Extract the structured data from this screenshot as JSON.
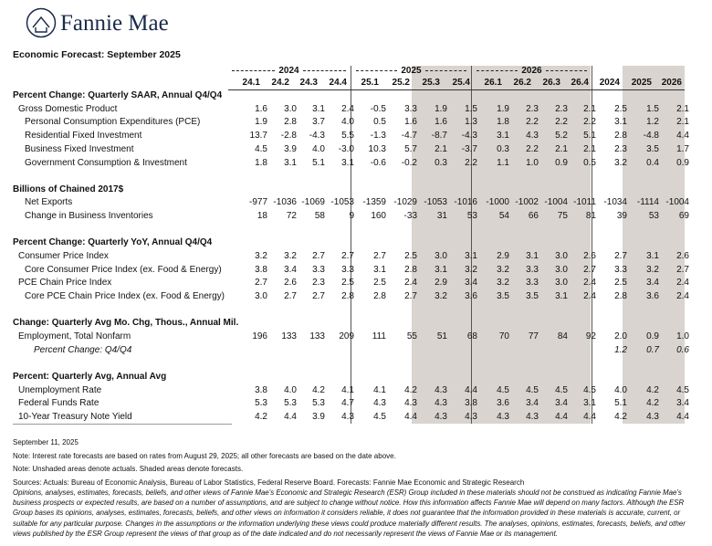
{
  "header": {
    "logo": "Fannie Mae",
    "title": "Economic Forecast: September 2025"
  },
  "columns": {
    "years": [
      "2024",
      "2025",
      "2026"
    ],
    "quarters": [
      "24.1",
      "24.2",
      "24.3",
      "24.4",
      "25.1",
      "25.2",
      "25.3",
      "25.4",
      "26.1",
      "26.2",
      "26.3",
      "26.4"
    ],
    "annual": [
      "2024",
      "2025",
      "2026"
    ]
  },
  "sections": [
    {
      "title": "Percent Change: Quarterly SAAR, Annual Q4/Q4",
      "rows": [
        {
          "label": "Gross Domestic Product",
          "quarters": [
            "1.6",
            "3.0",
            "3.1",
            "2.4",
            "-0.5",
            "3.3",
            "1.9",
            "1.5",
            "1.9",
            "2.3",
            "2.3",
            "2.1"
          ],
          "annual": [
            "2.5",
            "1.5",
            "2.1"
          ]
        },
        {
          "label": "Personal Consumption Expenditures (PCE)",
          "quarters": [
            "1.9",
            "2.8",
            "3.7",
            "4.0",
            "0.5",
            "1.6",
            "1.6",
            "1.3",
            "1.8",
            "2.2",
            "2.2",
            "2.2"
          ],
          "annual": [
            "3.1",
            "1.2",
            "2.1"
          ]
        },
        {
          "label": "Residential Fixed Investment",
          "quarters": [
            "13.7",
            "-2.8",
            "-4.3",
            "5.5",
            "-1.3",
            "-4.7",
            "-8.7",
            "-4.3",
            "3.1",
            "4.3",
            "5.2",
            "5.1"
          ],
          "annual": [
            "2.8",
            "-4.8",
            "4.4"
          ]
        },
        {
          "label": "Business Fixed Investment",
          "quarters": [
            "4.5",
            "3.9",
            "4.0",
            "-3.0",
            "10.3",
            "5.7",
            "2.1",
            "-3.7",
            "0.3",
            "2.2",
            "2.1",
            "2.1"
          ],
          "annual": [
            "2.3",
            "3.5",
            "1.7"
          ]
        },
        {
          "label": "Government Consumption & Investment",
          "quarters": [
            "1.8",
            "3.1",
            "5.1",
            "3.1",
            "-0.6",
            "-0.2",
            "0.3",
            "2.2",
            "1.1",
            "1.0",
            "0.9",
            "0.5"
          ],
          "annual": [
            "3.2",
            "0.4",
            "0.9"
          ]
        }
      ]
    },
    {
      "title": "Billions of Chained 2017$",
      "rows": [
        {
          "label": "Net Exports",
          "quarters": [
            "-977",
            "-1036",
            "-1069",
            "-1053",
            "-1359",
            "-1029",
            "-1053",
            "-1016",
            "-1000",
            "-1002",
            "-1004",
            "-1011"
          ],
          "annual": [
            "-1034",
            "-1114",
            "-1004"
          ]
        },
        {
          "label": "Change in Business Inventories",
          "quarters": [
            "18",
            "72",
            "58",
            "9",
            "160",
            "-33",
            "31",
            "53",
            "54",
            "66",
            "75",
            "81"
          ],
          "annual": [
            "39",
            "53",
            "69"
          ]
        }
      ]
    },
    {
      "title": "Percent Change: Quarterly YoY, Annual Q4/Q4",
      "rows": [
        {
          "label": "Consumer Price Index",
          "quarters": [
            "3.2",
            "3.2",
            "2.7",
            "2.7",
            "2.7",
            "2.5",
            "3.0",
            "3.1",
            "2.9",
            "3.1",
            "3.0",
            "2.6"
          ],
          "annual": [
            "2.7",
            "3.1",
            "2.6"
          ]
        },
        {
          "label": "Core Consumer Price Index (ex. Food & Energy)",
          "quarters": [
            "3.8",
            "3.4",
            "3.3",
            "3.3",
            "3.1",
            "2.8",
            "3.1",
            "3.2",
            "3.2",
            "3.3",
            "3.0",
            "2.7"
          ],
          "annual": [
            "3.3",
            "3.2",
            "2.7"
          ]
        },
        {
          "label": "PCE Chain Price Index",
          "quarters": [
            "2.7",
            "2.6",
            "2.3",
            "2.5",
            "2.5",
            "2.4",
            "2.9",
            "3.4",
            "3.2",
            "3.3",
            "3.0",
            "2.4"
          ],
          "annual": [
            "2.5",
            "3.4",
            "2.4"
          ]
        },
        {
          "label": "Core PCE Chain Price Index (ex. Food & Energy)",
          "quarters": [
            "3.0",
            "2.7",
            "2.7",
            "2.8",
            "2.8",
            "2.7",
            "3.2",
            "3.6",
            "3.5",
            "3.5",
            "3.1",
            "2.4"
          ],
          "annual": [
            "2.8",
            "3.6",
            "2.4"
          ]
        }
      ]
    },
    {
      "title": "Change: Quarterly Avg Mo. Chg, Thous., Annual Mil.",
      "rows": [
        {
          "label": "Employment, Total Nonfarm",
          "quarters": [
            "196",
            "133",
            "133",
            "209",
            "111",
            "55",
            "51",
            "68",
            "70",
            "77",
            "84",
            "92"
          ],
          "annual": [
            "2.0",
            "0.9",
            "1.0"
          ]
        },
        {
          "label": "Percent Change: Q4/Q4",
          "annual": [
            "1.2",
            "0.7",
            "0.6"
          ]
        }
      ]
    },
    {
      "title": "Percent: Quarterly Avg, Annual Avg",
      "rows": [
        {
          "label": "Unemployment Rate",
          "quarters": [
            "3.8",
            "4.0",
            "4.2",
            "4.1",
            "4.1",
            "4.2",
            "4.3",
            "4.4",
            "4.5",
            "4.5",
            "4.5",
            "4.5"
          ],
          "annual": [
            "4.0",
            "4.2",
            "4.5"
          ]
        },
        {
          "label": "Federal Funds Rate",
          "quarters": [
            "5.3",
            "5.3",
            "5.3",
            "4.7",
            "4.3",
            "4.3",
            "4.3",
            "3.8",
            "3.6",
            "3.4",
            "3.4",
            "3.1"
          ],
          "annual": [
            "5.1",
            "4.2",
            "3.4"
          ]
        },
        {
          "label": "10-Year Treasury Note Yield",
          "quarters": [
            "4.2",
            "4.4",
            "3.9",
            "4.3",
            "4.5",
            "4.4",
            "4.3",
            "4.3",
            "4.3",
            "4.3",
            "4.4",
            "4.4"
          ],
          "annual": [
            "4.2",
            "4.3",
            "4.4"
          ]
        }
      ]
    }
  ],
  "footer": {
    "date": "September 11, 2025",
    "notes": [
      "Note: Interest rate forecasts are based on rates from August 29, 2025; all other forecasts are based on the date above.",
      "Note: Unshaded areas denote actuals. Shaded areas denote forecasts."
    ],
    "sources": "Sources: Actuals: Bureau of Economic Analysis, Bureau of Labor Statistics, Federal Reserve Board. Forecasts: Fannie Mae Economic and Strategic Research",
    "disclaimer": "Opinions, analyses, estimates, forecasts, beliefs, and other views of Fannie Mae's Economic and Strategic Research (ESR) Group included in these materials should not be construed as indicating Fannie Mae's business prospects or expected results, are based on a number of assumptions, and are subject to change without notice. How this information affects Fannie Mae will depend on many factors. Although the ESR Group bases its opinions, analyses, estimates, forecasts, beliefs, and other views on information it considers reliable, it does not guarantee that the information provided in these materials is accurate, current, or suitable for any particular purpose. Changes in the assumptions or the information underlying these views could produce materially different results. The analyses, opinions, estimates, forecasts, beliefs, and other views published by the ESR Group represent the views of that group as of the date indicated and do not necessarily represent the views of Fannie Mae or its management."
  }
}
